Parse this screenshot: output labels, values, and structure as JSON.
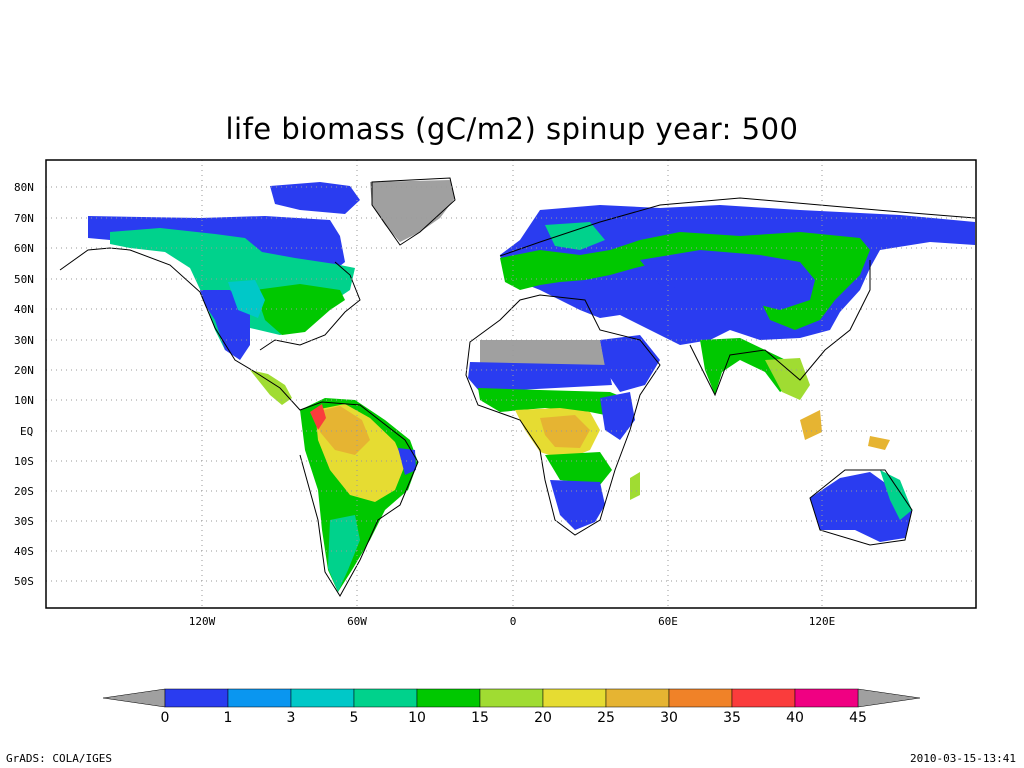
{
  "title": "life biomass (gC/m2) spinup year: 500",
  "footer": {
    "left": "GrADS: COLA/IGES",
    "right": "2010-03-15-13:41"
  },
  "lat_ticks": [
    "80N",
    "70N",
    "60N",
    "50N",
    "40N",
    "30N",
    "20N",
    "10N",
    "EQ",
    "10S",
    "20S",
    "30S",
    "40S",
    "50S"
  ],
  "lon_ticks": [
    "120W",
    "60W",
    "0",
    "60E",
    "120E"
  ],
  "colorbar": {
    "levels": [
      "0",
      "1",
      "3",
      "5",
      "10",
      "15",
      "20",
      "25",
      "30",
      "35",
      "40",
      "45"
    ],
    "colors": [
      "#2a3cf0",
      "#0a96f0",
      "#00c8c8",
      "#00d28c",
      "#00c800",
      "#a0dc32",
      "#e6dc32",
      "#e6b432",
      "#f08228",
      "#fa3c3c",
      "#f00082"
    ],
    "under_color": "#a0a0a0",
    "over_color": "#a0a0a0"
  },
  "chart_data": {
    "type": "map",
    "title": "life biomass (gC/m2) spinup year: 500",
    "x_ticks": [
      "120W",
      "60W",
      "0",
      "60E",
      "120E"
    ],
    "y_ticks": [
      "80N",
      "70N",
      "60N",
      "50N",
      "40N",
      "30N",
      "20N",
      "10N",
      "EQ",
      "10S",
      "20S",
      "30S",
      "40S",
      "50S"
    ],
    "lon_range": [
      -180,
      180
    ],
    "lat_range": [
      -60,
      85
    ],
    "grid": true,
    "legend": "bottom colorbar",
    "color_levels": [
      0,
      1,
      3,
      5,
      10,
      15,
      20,
      25,
      30,
      35,
      40,
      45
    ]
  }
}
